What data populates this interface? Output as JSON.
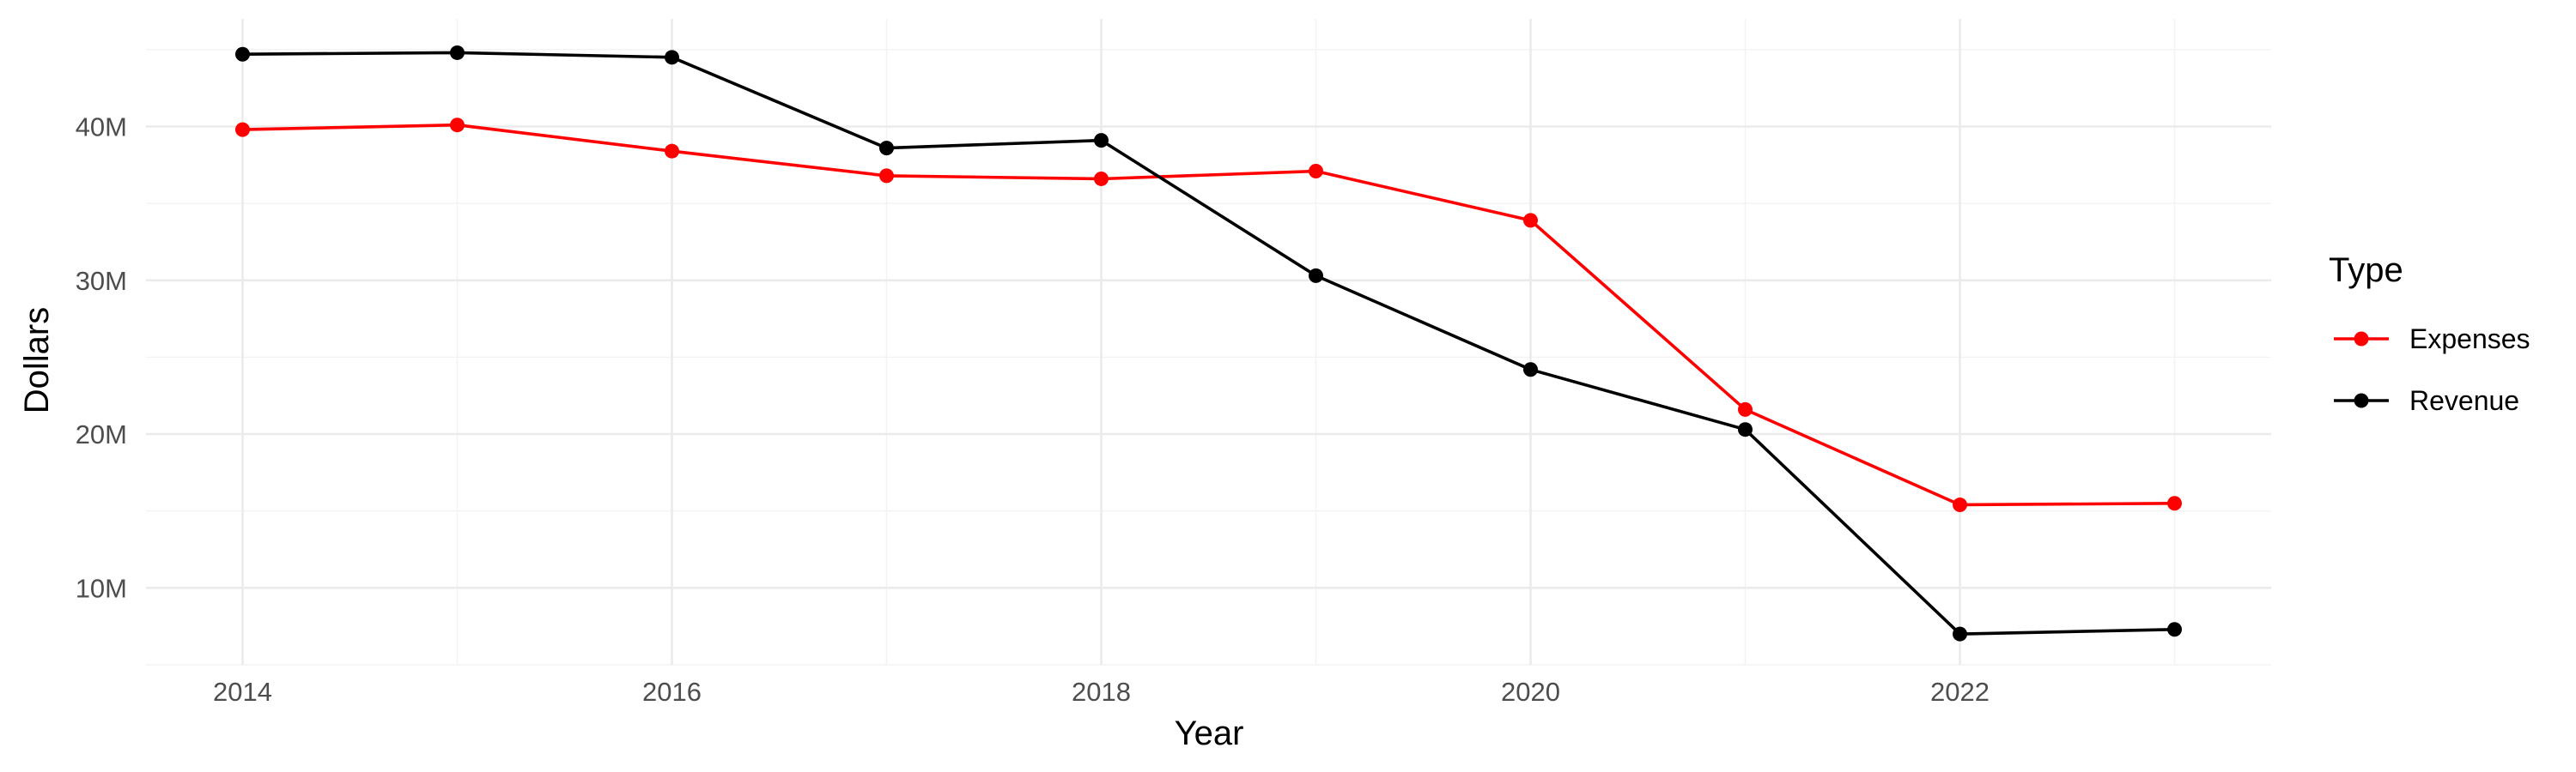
{
  "chart_data": {
    "type": "line",
    "title": "",
    "xlabel": "Year",
    "ylabel": "Dollars",
    "x": [
      2014,
      2015,
      2016,
      2017,
      2018,
      2019,
      2020,
      2021,
      2022,
      2023
    ],
    "x_ticks": [
      2014,
      2016,
      2018,
      2020,
      2022
    ],
    "x_tick_labels": [
      "2014",
      "2016",
      "2018",
      "2020",
      "2022"
    ],
    "xlim": [
      2013.55,
      2023.45
    ],
    "y_ticks": [
      10000000,
      20000000,
      30000000,
      40000000
    ],
    "y_tick_labels": [
      "10M",
      "20M",
      "30M",
      "40M"
    ],
    "ylim": [
      5000000,
      47000000
    ],
    "grid": true,
    "legend": {
      "title": "Type",
      "position": "right"
    },
    "series": [
      {
        "name": "Expenses",
        "color": "#ff0000",
        "values": [
          39800000,
          40100000,
          38400000,
          36800000,
          36600000,
          37100000,
          33900000,
          21600000,
          15400000,
          15500000
        ]
      },
      {
        "name": "Revenue",
        "color": "#000000",
        "values": [
          44700000,
          44800000,
          44500000,
          38600000,
          39100000,
          30300000,
          24200000,
          20300000,
          7000000,
          7300000
        ]
      }
    ]
  }
}
